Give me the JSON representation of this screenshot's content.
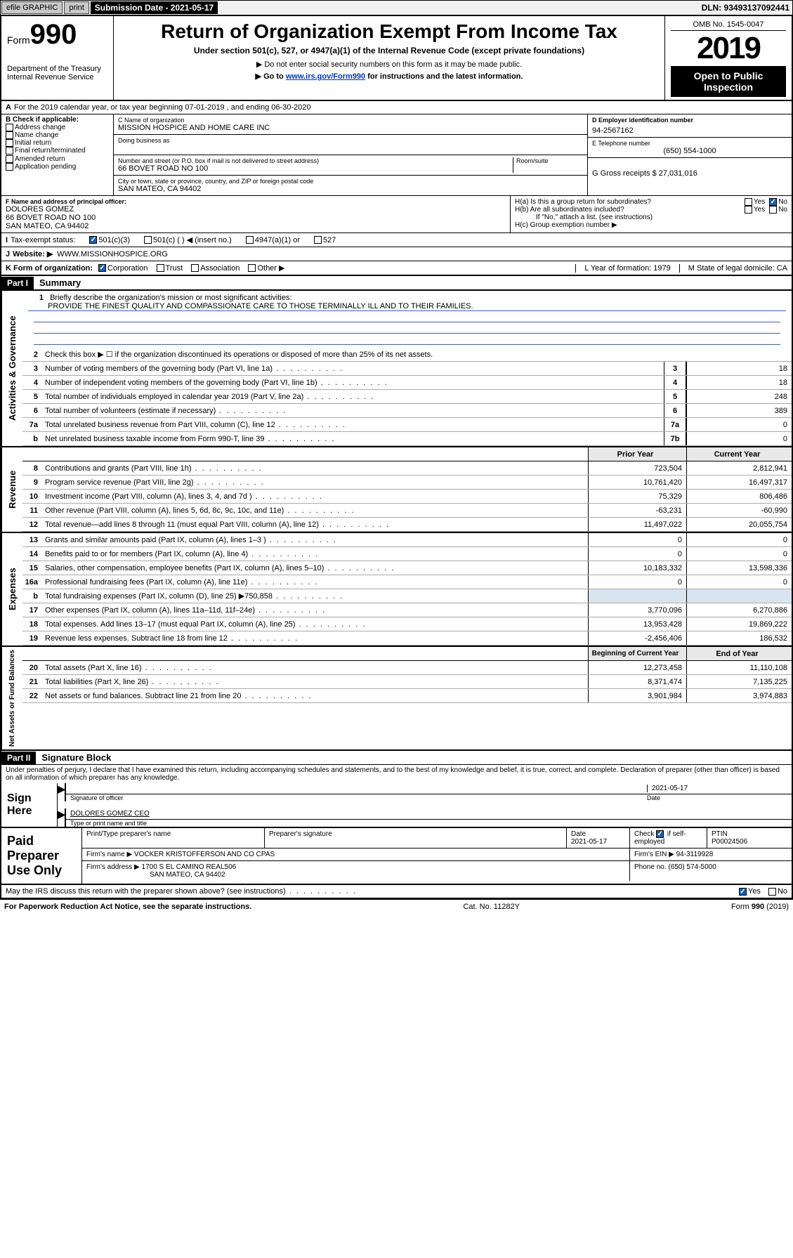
{
  "topbar": {
    "efile": "efile GRAPHIC",
    "print": "print",
    "submission_label": "Submission Date - 2021-05-17",
    "dln": "DLN: 93493137092441"
  },
  "header": {
    "form_prefix": "Form",
    "form_number": "990",
    "dept1": "Department of the Treasury",
    "dept2": "Internal Revenue Service",
    "title": "Return of Organization Exempt From Income Tax",
    "subtitle": "Under section 501(c), 527, or 4947(a)(1) of the Internal Revenue Code (except private foundations)",
    "note1": "▶ Do not enter social security numbers on this form as it may be made public.",
    "note2_pre": "▶ Go to ",
    "note2_link": "www.irs.gov/Form990",
    "note2_post": " for instructions and the latest information.",
    "omb": "OMB No. 1545-0047",
    "year": "2019",
    "open": "Open to Public Inspection"
  },
  "period": {
    "line": "For the 2019 calendar year, or tax year beginning 07-01-2019   , and ending 06-30-2020",
    "a_label": "A"
  },
  "checkboxes": {
    "header": "B Check if applicable:",
    "items": [
      "Address change",
      "Name change",
      "Initial return",
      "Final return/terminated",
      "Amended return",
      "Application pending"
    ]
  },
  "org": {
    "c_label": "C Name of organization",
    "name": "MISSION HOSPICE AND HOME CARE INC",
    "dba_label": "Doing business as",
    "addr_label": "Number and street (or P.O. box if mail is not delivered to street address)",
    "room_label": "Room/suite",
    "addr": "66 BOVET ROAD NO 100",
    "city_label": "City or town, state or province, country, and ZIP or foreign postal code",
    "city": "SAN MATEO, CA  94402"
  },
  "right": {
    "d_label": "D Employer identification number",
    "ein": "94-2567162",
    "e_label": "E Telephone number",
    "phone": "(650) 554-1000",
    "g_label": "G Gross receipts $ 27,031,016"
  },
  "officer": {
    "f_label": "F  Name and address of principal officer:",
    "name": "DOLORES GOMEZ",
    "addr1": "66 BOVET ROAD NO 100",
    "addr2": "SAN MATEO, CA  94402"
  },
  "h": {
    "a": "H(a)  Is this a group return for subordinates?",
    "b": "H(b)  Are all subordinates included?",
    "b_note": "If \"No,\" attach a list. (see instructions)",
    "c": "H(c)  Group exemption number ▶",
    "yes": "Yes",
    "no": "No"
  },
  "i": {
    "label": "I",
    "text": "Tax-exempt status:",
    "opts": [
      "501(c)(3)",
      "501(c) (  ) ◀ (insert no.)",
      "4947(a)(1) or",
      "527"
    ]
  },
  "j": {
    "label": "J",
    "text": "Website: ▶",
    "url": "WWW.MISSIONHOSPICE.ORG"
  },
  "k": {
    "label": "K Form of organization:",
    "opts": [
      "Corporation",
      "Trust",
      "Association",
      "Other ▶"
    ],
    "l": "L Year of formation: 1979",
    "m": "M State of legal domicile: CA"
  },
  "part1": {
    "hdr": "Part I",
    "title": "Summary"
  },
  "summary": {
    "line1_label": "1",
    "line1": "Briefly describe the organization's mission or most significant activities:",
    "mission": "PROVIDE THE FINEST QUALITY AND COMPASSIONATE CARE TO THOSE TERMINALLY ILL AND TO THEIR FAMILIES.",
    "line2": "Check this box ▶ ☐  if the organization discontinued its operations or disposed of more than 25% of its net assets.",
    "lines": [
      {
        "n": "3",
        "d": "Number of voting members of the governing body (Part VI, line 1a)",
        "box": "3",
        "v": "18"
      },
      {
        "n": "4",
        "d": "Number of independent voting members of the governing body (Part VI, line 1b)",
        "box": "4",
        "v": "18"
      },
      {
        "n": "5",
        "d": "Total number of individuals employed in calendar year 2019 (Part V, line 2a)",
        "box": "5",
        "v": "248"
      },
      {
        "n": "6",
        "d": "Total number of volunteers (estimate if necessary)",
        "box": "6",
        "v": "389"
      },
      {
        "n": "7a",
        "d": "Total unrelated business revenue from Part VIII, column (C), line 12",
        "box": "7a",
        "v": "0"
      },
      {
        "n": "b",
        "d": "Net unrelated business taxable income from Form 990-T, line 39",
        "box": "7b",
        "v": "0"
      }
    ]
  },
  "revenue": {
    "hdr_prior": "Prior Year",
    "hdr_curr": "Current Year",
    "rows": [
      {
        "n": "8",
        "d": "Contributions and grants (Part VIII, line 1h)",
        "p": "723,504",
        "c": "2,812,941"
      },
      {
        "n": "9",
        "d": "Program service revenue (Part VIII, line 2g)",
        "p": "10,761,420",
        "c": "16,497,317"
      },
      {
        "n": "10",
        "d": "Investment income (Part VIII, column (A), lines 3, 4, and 7d )",
        "p": "75,329",
        "c": "806,486"
      },
      {
        "n": "11",
        "d": "Other revenue (Part VIII, column (A), lines 5, 6d, 8c, 9c, 10c, and 11e)",
        "p": "-63,231",
        "c": "-60,990"
      },
      {
        "n": "12",
        "d": "Total revenue—add lines 8 through 11 (must equal Part VIII, column (A), line 12)",
        "p": "11,497,022",
        "c": "20,055,754"
      }
    ]
  },
  "expenses": {
    "rows": [
      {
        "n": "13",
        "d": "Grants and similar amounts paid (Part IX, column (A), lines 1–3 )",
        "p": "0",
        "c": "0"
      },
      {
        "n": "14",
        "d": "Benefits paid to or for members (Part IX, column (A), line 4)",
        "p": "0",
        "c": "0"
      },
      {
        "n": "15",
        "d": "Salaries, other compensation, employee benefits (Part IX, column (A), lines 5–10)",
        "p": "10,183,332",
        "c": "13,598,336"
      },
      {
        "n": "16a",
        "d": "Professional fundraising fees (Part IX, column (A), line 11e)",
        "p": "0",
        "c": "0"
      },
      {
        "n": "b",
        "d": "Total fundraising expenses (Part IX, column (D), line 25) ▶750,858",
        "p": "",
        "c": "",
        "shade": true
      },
      {
        "n": "17",
        "d": "Other expenses (Part IX, column (A), lines 11a–11d, 11f–24e)",
        "p": "3,770,096",
        "c": "6,270,886"
      },
      {
        "n": "18",
        "d": "Total expenses. Add lines 13–17 (must equal Part IX, column (A), line 25)",
        "p": "13,953,428",
        "c": "19,869,222"
      },
      {
        "n": "19",
        "d": "Revenue less expenses. Subtract line 18 from line 12",
        "p": "-2,456,406",
        "c": "186,532"
      }
    ]
  },
  "netassets": {
    "hdr_beg": "Beginning of Current Year",
    "hdr_end": "End of Year",
    "rows": [
      {
        "n": "20",
        "d": "Total assets (Part X, line 16)",
        "p": "12,273,458",
        "c": "11,110,108"
      },
      {
        "n": "21",
        "d": "Total liabilities (Part X, line 26)",
        "p": "8,371,474",
        "c": "7,135,225"
      },
      {
        "n": "22",
        "d": "Net assets or fund balances. Subtract line 21 from line 20",
        "p": "3,901,984",
        "c": "3,974,883"
      }
    ]
  },
  "part2": {
    "hdr": "Part II",
    "title": "Signature Block"
  },
  "perjury": "Under penalties of perjury, I declare that I have examined this return, including accompanying schedules and statements, and to the best of my knowledge and belief, it is true, correct, and complete. Declaration of preparer (other than officer) is based on all information of which preparer has any knowledge.",
  "sign": {
    "here": "Sign Here",
    "sig_label": "Signature of officer",
    "date": "2021-05-17",
    "date_label": "Date",
    "name": "DOLORES GOMEZ CEO",
    "name_label": "Type or print name and title"
  },
  "preparer": {
    "left": "Paid Preparer Use Only",
    "h1": "Print/Type preparer's name",
    "h2": "Preparer's signature",
    "h3": "Date",
    "h3v": "2021-05-17",
    "h4": "Check ☑ if self-employed",
    "h5": "PTIN",
    "h5v": "P00024506",
    "firm_label": "Firm's name    ▶",
    "firm": "VOCKER KRISTOFFERSON AND CO CPAS",
    "ein_label": "Firm's EIN ▶",
    "ein": "94-3119928",
    "addr_label": "Firm's address ▶",
    "addr": "1700 S EL CAMINO REAL506",
    "addr2": "SAN MATEO, CA  94402",
    "phone_label": "Phone no.",
    "phone": "(650) 574-5000"
  },
  "discuss": "May the IRS discuss this return with the preparer shown above? (see instructions)",
  "footer": {
    "left": "For Paperwork Reduction Act Notice, see the separate instructions.",
    "mid": "Cat. No. 11282Y",
    "right": "Form 990 (2019)"
  }
}
